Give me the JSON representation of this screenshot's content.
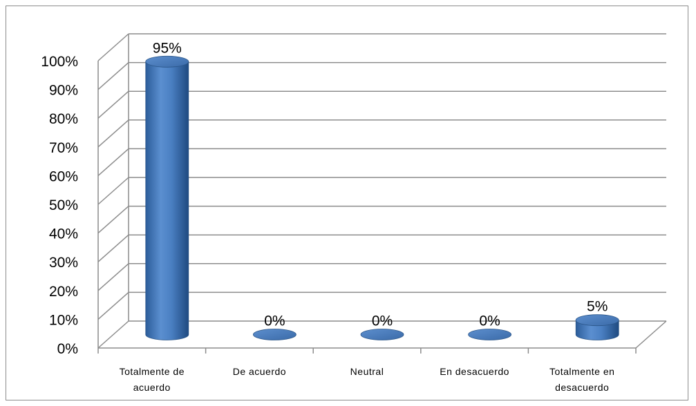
{
  "chart_data": {
    "type": "bar",
    "categories": [
      [
        "Totalmente de",
        "acuerdo"
      ],
      [
        "De acuerdo"
      ],
      [
        "Neutral"
      ],
      [
        "En desacuerdo"
      ],
      [
        "Totalmente en",
        "desacuerdo"
      ]
    ],
    "values": [
      95,
      0,
      0,
      0,
      5
    ],
    "data_labels": [
      "95%",
      "0%",
      "0%",
      "0%",
      "5%"
    ],
    "yticks": [
      "0%",
      "10%",
      "20%",
      "30%",
      "40%",
      "50%",
      "60%",
      "70%",
      "80%",
      "90%",
      "100%"
    ],
    "ylim": [
      0,
      100
    ],
    "style": "3d-cylinder",
    "grid": true,
    "bar_color": "#4f81bd"
  }
}
